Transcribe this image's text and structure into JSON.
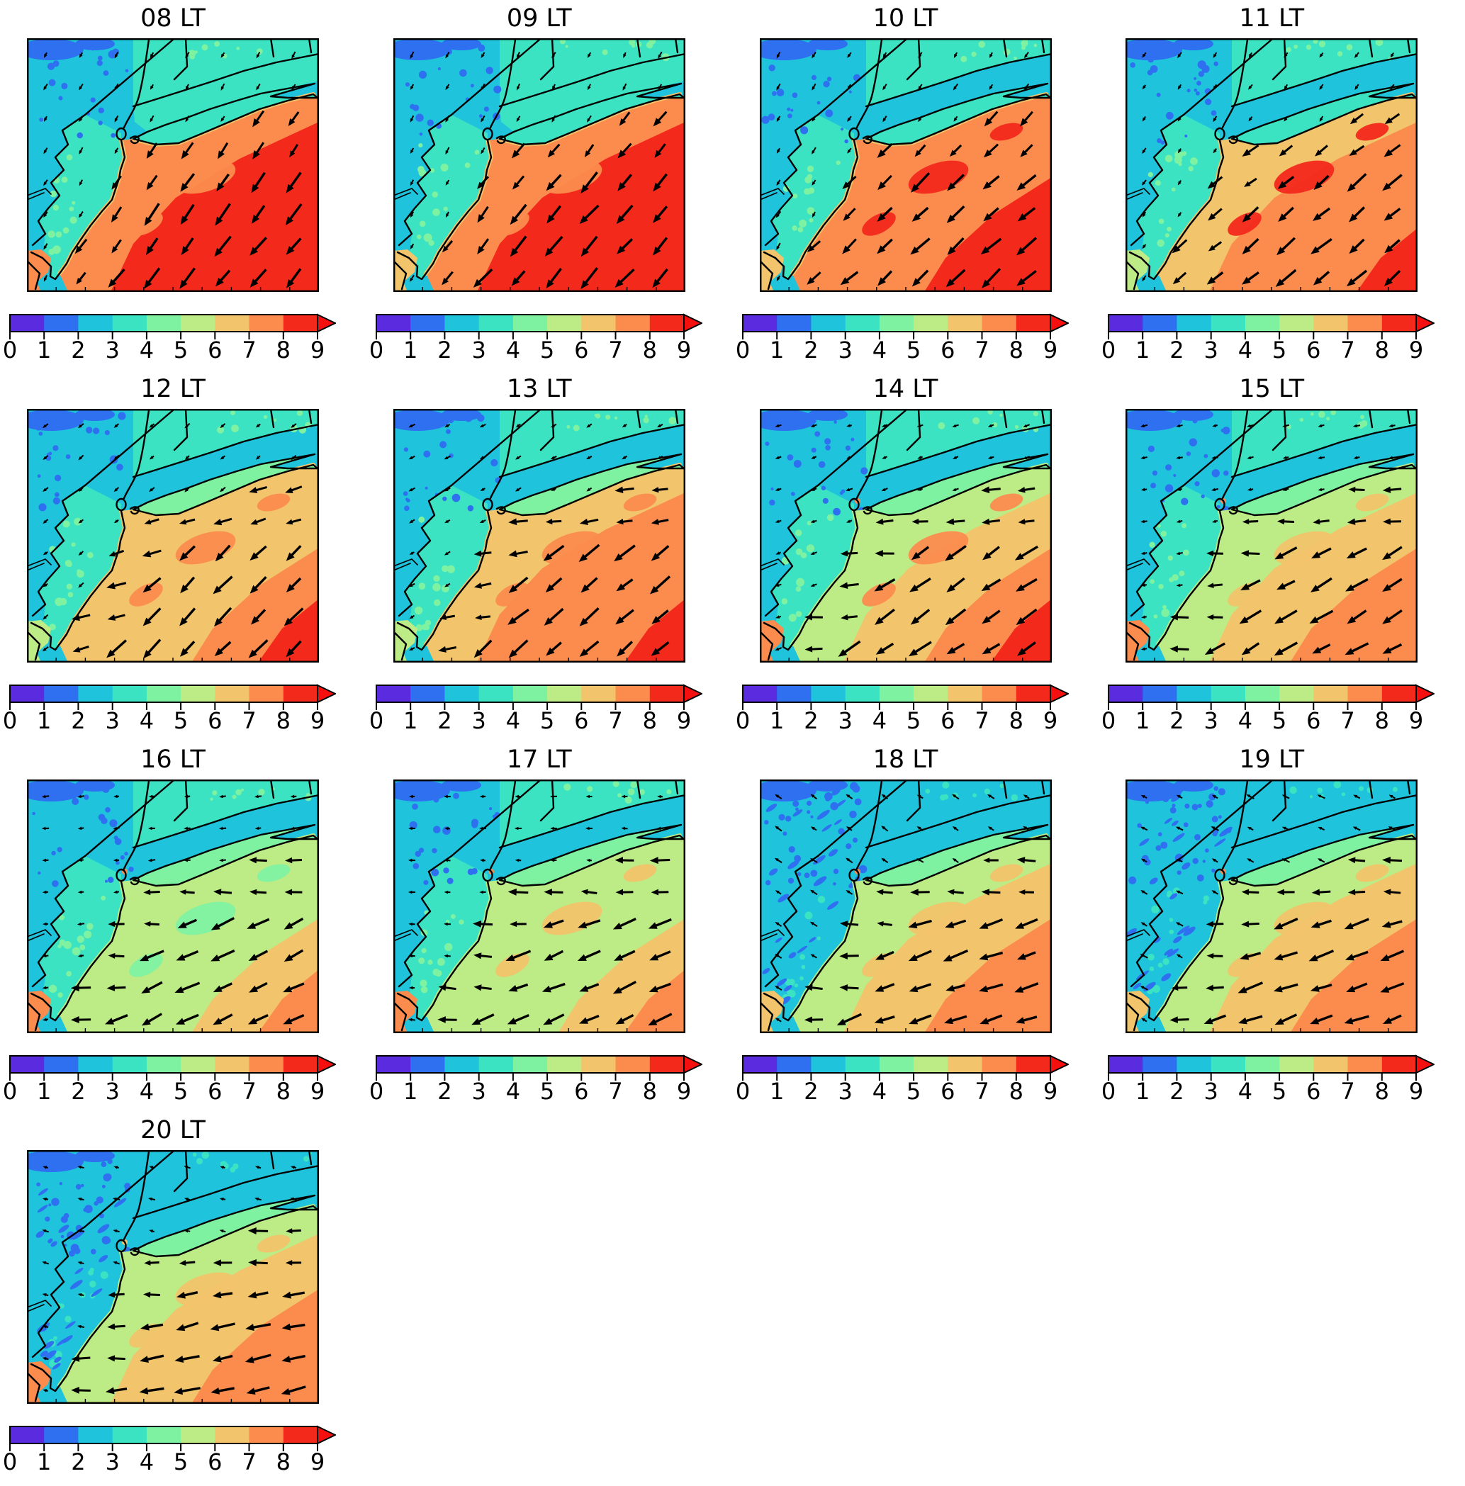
{
  "figure": {
    "rows": 4,
    "cols": 4,
    "panel_count": 13
  },
  "colorbar": {
    "ticks": [
      "0",
      "1",
      "2",
      "3",
      "4",
      "5",
      "6",
      "7",
      "8",
      "9"
    ],
    "range": [
      0,
      9
    ],
    "orientation": "horizontal",
    "extend": "max",
    "colors": [
      "#5b2be0",
      "#2e70f0",
      "#1fc3dc",
      "#3ce3c2",
      "#7ff2a2",
      "#bdeb85",
      "#f2c46b",
      "#fb8c4e",
      "#f3291c"
    ],
    "arrow_color": "#f60f0f"
  },
  "chart_data": {
    "type": "heatmap",
    "subplot_titles": [
      "08 LT",
      "09 LT",
      "10 LT",
      "11 LT",
      "12 LT",
      "13 LT",
      "14 LT",
      "15 LT",
      "16 LT",
      "17 LT",
      "18 LT",
      "19 LT",
      "20 LT"
    ],
    "colorbar": {
      "tick_labels": [
        "0",
        "1",
        "2",
        "3",
        "4",
        "5",
        "6",
        "7",
        "8",
        "9"
      ],
      "range": [
        0,
        9
      ],
      "bin_colors": [
        "#5b2be0",
        "#2e70f0",
        "#1fc3dc",
        "#3ce3c2",
        "#7ff2a2",
        "#bdeb85",
        "#f2c46b",
        "#fb8c4e",
        "#f3291c"
      ],
      "extend_color": "#f60f0f"
    },
    "panels": [
      {
        "time": "08 LT",
        "inland_value_bin": "2-4",
        "nearshore_value_bin": "7-8",
        "offshore_value_bin": "8-9",
        "wind_pointing": "SW"
      },
      {
        "time": "09 LT",
        "inland_value_bin": "2-4",
        "nearshore_value_bin": "7-8",
        "offshore_value_bin": "8-9",
        "wind_pointing": "SSW"
      },
      {
        "time": "10 LT",
        "inland_value_bin": "2-4",
        "nearshore_value_bin": "6-7",
        "offshore_value_bin": "7-9",
        "wind_pointing": "SSW"
      },
      {
        "time": "11 LT",
        "inland_value_bin": "2-4",
        "nearshore_value_bin": "6-7",
        "offshore_value_bin": "7-9",
        "wind_pointing": "SW"
      },
      {
        "time": "12 LT",
        "inland_value_bin": "2-4",
        "nearshore_value_bin": "6-7",
        "offshore_value_bin": "7-9",
        "wind_pointing": "W near coast, SW offshore"
      },
      {
        "time": "13 LT",
        "inland_value_bin": "2-4",
        "nearshore_value_bin": "6-7",
        "offshore_value_bin": "7-9",
        "wind_pointing": "W near coast, SW offshore"
      },
      {
        "time": "14 LT",
        "inland_value_bin": "2-4",
        "nearshore_value_bin": "5-6",
        "offshore_value_bin": "6-9",
        "wind_pointing": "W near coast, SW offshore"
      },
      {
        "time": "15 LT",
        "inland_value_bin": "2-4",
        "nearshore_value_bin": "5-6",
        "offshore_value_bin": "6-8",
        "wind_pointing": "W near coast, SW offshore"
      },
      {
        "time": "16 LT",
        "inland_value_bin": "2-4",
        "nearshore_value_bin": "5-6",
        "offshore_value_bin": "6-8",
        "wind_pointing": "W onshore"
      },
      {
        "time": "17 LT",
        "inland_value_bin": "2-4",
        "nearshore_value_bin": "5-6",
        "offshore_value_bin": "6-8",
        "wind_pointing": "W onshore"
      },
      {
        "time": "18 LT",
        "inland_value_bin": "1-4",
        "nearshore_value_bin": "5-6",
        "offshore_value_bin": "6-8",
        "wind_pointing": "W onshore, NW inland"
      },
      {
        "time": "19 LT",
        "inland_value_bin": "1-4",
        "nearshore_value_bin": "5-6",
        "offshore_value_bin": "6-8",
        "wind_pointing": "W onshore"
      },
      {
        "time": "20 LT",
        "inland_value_bin": "1-4",
        "nearshore_value_bin": "5-6",
        "offshore_value_bin": "6-8",
        "wind_pointing": "W"
      }
    ]
  },
  "panels": [
    {
      "title": "08 LT",
      "field": {
        "nw": "#1fc3dc",
        "nw_speckle": "#2e70f0",
        "snj": "#3ce3c2",
        "snj_speckle": "#7ff2a2",
        "ct": "#3ce3c2",
        "ct_speckle": "#7ff2a2",
        "li": "#3ce3c2",
        "sound": "#3ce3c2",
        "beach": "#f2c46b",
        "ocean_near": "#fb8c4e",
        "ocean_mid": "#f3291c",
        "ocean_far": "#f3291c",
        "ocean_deep": "#f3291c",
        "ocean_patch": "#fb8c4e",
        "bl": "#fb8c4e",
        "city": null,
        "heavy": false
      },
      "wind": {
        "land": {
          "angle": 240,
          "len": 10
        },
        "coast": {
          "angle": 235,
          "len": 25
        },
        "ocean": {
          "angle": 232,
          "len": 33
        }
      }
    },
    {
      "title": "09 LT",
      "field": {
        "nw": "#1fc3dc",
        "nw_speckle": "#2e70f0",
        "snj": "#3ce3c2",
        "snj_speckle": "#7ff2a2",
        "ct": "#3ce3c2",
        "ct_speckle": "#7ff2a2",
        "li": "#3ce3c2",
        "sound": "#3ce3c2",
        "beach": "#f2c46b",
        "ocean_near": "#fb8c4e",
        "ocean_mid": "#f3291c",
        "ocean_far": "#f3291c",
        "ocean_deep": "#f3291c",
        "ocean_patch": "#fb8c4e",
        "bl": "#f2c46b",
        "city": null,
        "heavy": false
      },
      "wind": {
        "land": {
          "angle": 242,
          "len": 10
        },
        "coast": {
          "angle": 232,
          "len": 25
        },
        "ocean": {
          "angle": 228,
          "len": 33
        }
      }
    },
    {
      "title": "10 LT",
      "field": {
        "nw": "#1fc3dc",
        "nw_speckle": "#2e70f0",
        "snj": "#3ce3c2",
        "snj_speckle": "#7ff2a2",
        "ct": "#3ce3c2",
        "ct_speckle": "#7ff2a2",
        "li": "#3ce3c2",
        "sound": "#1fc3dc",
        "beach": "#f2c46b",
        "ocean_near": "#fb8c4e",
        "ocean_mid": "#fb8c4e",
        "ocean_far": "#f3291c",
        "ocean_deep": "#f3291c",
        "ocean_patch": "#f3291c",
        "bl": "#f2c46b",
        "city": null,
        "heavy": false
      },
      "wind": {
        "land": {
          "angle": 238,
          "len": 10
        },
        "coast": {
          "angle": 225,
          "len": 25
        },
        "ocean": {
          "angle": 222,
          "len": 33
        }
      }
    },
    {
      "title": "11 LT",
      "field": {
        "nw": "#1fc3dc",
        "nw_speckle": "#2e70f0",
        "snj": "#3ce3c2",
        "snj_speckle": "#7ff2a2",
        "ct": "#3ce3c2",
        "ct_speckle": "#7ff2a2",
        "li": "#3ce3c2",
        "sound": "#1fc3dc",
        "beach": "#f2c46b",
        "ocean_near": "#f2c46b",
        "ocean_mid": "#fb8c4e",
        "ocean_far": "#fb8c4e",
        "ocean_deep": "#f3291c",
        "ocean_patch": "#f3291c",
        "bl": "#bdeb85",
        "city": null,
        "heavy": false
      },
      "wind": {
        "land": {
          "angle": 235,
          "len": 9
        },
        "coast": {
          "angle": 218,
          "len": 25
        },
        "ocean": {
          "angle": 220,
          "len": 33
        }
      }
    },
    {
      "title": "12 LT",
      "field": {
        "nw": "#1fc3dc",
        "nw_speckle": "#2e70f0",
        "snj": "#3ce3c2",
        "snj_speckle": "#7ff2a2",
        "ct": "#3ce3c2",
        "ct_speckle": "#7ff2a2",
        "li": "#7ff2a2",
        "sound": "#1fc3dc",
        "beach": "#f2c46b",
        "ocean_near": "#f2c46b",
        "ocean_mid": "#f2c46b",
        "ocean_far": "#fb8c4e",
        "ocean_deep": "#f3291c",
        "ocean_patch": "#fb8c4e",
        "bl": "#bdeb85",
        "city": null,
        "heavy": false
      },
      "wind": {
        "land": {
          "angle": 220,
          "len": 9
        },
        "coast": {
          "angle": 196,
          "len": 25
        },
        "ocean": {
          "angle": 224,
          "len": 33
        }
      }
    },
    {
      "title": "13 LT",
      "field": {
        "nw": "#1fc3dc",
        "nw_speckle": "#2e70f0",
        "snj": "#3ce3c2",
        "snj_speckle": "#7ff2a2",
        "ct": "#3ce3c2",
        "ct_speckle": "#7ff2a2",
        "li": "#7ff2a2",
        "sound": "#1fc3dc",
        "beach": "#f2c46b",
        "ocean_near": "#f2c46b",
        "ocean_mid": "#fb8c4e",
        "ocean_far": "#fb8c4e",
        "ocean_deep": "#f3291c",
        "ocean_patch": "#fb8c4e",
        "bl": "#bdeb85",
        "city": null,
        "heavy": false
      },
      "wind": {
        "land": {
          "angle": 210,
          "len": 9
        },
        "coast": {
          "angle": 188,
          "len": 25
        },
        "ocean": {
          "angle": 220,
          "len": 33
        }
      }
    },
    {
      "title": "14 LT",
      "field": {
        "nw": "#1fc3dc",
        "nw_speckle": "#2e70f0",
        "snj": "#3ce3c2",
        "snj_speckle": "#7ff2a2",
        "ct": "#3ce3c2",
        "ct_speckle": "#7ff2a2",
        "li": "#7ff2a2",
        "sound": "#1fc3dc",
        "beach": "#bdeb85",
        "ocean_near": "#bdeb85",
        "ocean_mid": "#f2c46b",
        "ocean_far": "#fb8c4e",
        "ocean_deep": "#f3291c",
        "ocean_patch": "#fb8c4e",
        "bl": "#fb8c4e",
        "city": "#fb8c4e",
        "heavy": false
      },
      "wind": {
        "land": {
          "angle": 200,
          "len": 9
        },
        "coast": {
          "angle": 184,
          "len": 25
        },
        "ocean": {
          "angle": 214,
          "len": 33
        }
      }
    },
    {
      "title": "15 LT",
      "field": {
        "nw": "#1fc3dc",
        "nw_speckle": "#2e70f0",
        "snj": "#3ce3c2",
        "snj_speckle": "#7ff2a2",
        "ct": "#3ce3c2",
        "ct_speckle": "#7ff2a2",
        "li": "#7ff2a2",
        "sound": "#1fc3dc",
        "beach": "#bdeb85",
        "ocean_near": "#bdeb85",
        "ocean_mid": "#f2c46b",
        "ocean_far": "#fb8c4e",
        "ocean_deep": "#fb8c4e",
        "ocean_patch": "#f2c46b",
        "bl": "#fb8c4e",
        "city": "#fb8c4e",
        "heavy": false
      },
      "wind": {
        "land": {
          "angle": 192,
          "len": 9
        },
        "coast": {
          "angle": 182,
          "len": 25
        },
        "ocean": {
          "angle": 210,
          "len": 33
        }
      }
    },
    {
      "title": "16 LT",
      "field": {
        "nw": "#1fc3dc",
        "nw_speckle": "#2e70f0",
        "snj": "#3ce3c2",
        "snj_speckle": "#7ff2a2",
        "ct": "#3ce3c2",
        "ct_speckle": "#7ff2a2",
        "li": "#7ff2a2",
        "sound": "#1fc3dc",
        "beach": "#bdeb85",
        "ocean_near": "#bdeb85",
        "ocean_mid": "#bdeb85",
        "ocean_far": "#f2c46b",
        "ocean_deep": "#fb8c4e",
        "ocean_patch": "#7ff2a2",
        "bl": "#fb8c4e",
        "city": "#fb8c4e",
        "heavy": false
      },
      "wind": {
        "land": {
          "angle": 186,
          "len": 9
        },
        "coast": {
          "angle": 179,
          "len": 25
        },
        "ocean": {
          "angle": 206,
          "len": 33
        }
      }
    },
    {
      "title": "17 LT",
      "field": {
        "nw": "#1fc3dc",
        "nw_speckle": "#2e70f0",
        "snj": "#3ce3c2",
        "snj_speckle": "#7ff2a2",
        "ct": "#3ce3c2",
        "ct_speckle": "#7ff2a2",
        "li": "#7ff2a2",
        "sound": "#1fc3dc",
        "beach": "#bdeb85",
        "ocean_near": "#bdeb85",
        "ocean_mid": "#bdeb85",
        "ocean_far": "#f2c46b",
        "ocean_deep": "#fb8c4e",
        "ocean_patch": "#f2c46b",
        "bl": "#fb8c4e",
        "city": "#fb8c4e",
        "heavy": false
      },
      "wind": {
        "land": {
          "angle": 178,
          "len": 9
        },
        "coast": {
          "angle": 177,
          "len": 25
        },
        "ocean": {
          "angle": 203,
          "len": 33
        }
      }
    },
    {
      "title": "18 LT",
      "field": {
        "nw": "#1fc3dc",
        "nw_speckle": "#2e70f0",
        "snj": "#1fc3dc",
        "snj_speckle": "#3ce3c2",
        "ct": "#1fc3dc",
        "ct_speckle": "#3ce3c2",
        "li": "#7ff2a2",
        "sound": "#1fc3dc",
        "beach": "#bdeb85",
        "ocean_near": "#bdeb85",
        "ocean_mid": "#f2c46b",
        "ocean_far": "#fb8c4e",
        "ocean_deep": "#fb8c4e",
        "ocean_patch": "#f2c46b",
        "bl": "#f2c46b",
        "city": "#fb8c4e",
        "heavy": true
      },
      "wind": {
        "land": {
          "angle": 146,
          "len": 11
        },
        "coast": {
          "angle": 177,
          "len": 25
        },
        "ocean": {
          "angle": 200,
          "len": 33
        }
      }
    },
    {
      "title": "19 LT",
      "field": {
        "nw": "#1fc3dc",
        "nw_speckle": "#2e70f0",
        "snj": "#1fc3dc",
        "snj_speckle": "#3ce3c2",
        "ct": "#1fc3dc",
        "ct_speckle": "#3ce3c2",
        "li": "#7ff2a2",
        "sound": "#1fc3dc",
        "beach": "#bdeb85",
        "ocean_near": "#bdeb85",
        "ocean_mid": "#f2c46b",
        "ocean_far": "#fb8c4e",
        "ocean_deep": "#fb8c4e",
        "ocean_patch": "#f2c46b",
        "bl": "#f2c46b",
        "city": "#fb8c4e",
        "heavy": true
      },
      "wind": {
        "land": {
          "angle": 152,
          "len": 11
        },
        "coast": {
          "angle": 179,
          "len": 25
        },
        "ocean": {
          "angle": 200,
          "len": 33
        }
      }
    },
    {
      "title": "20 LT",
      "field": {
        "nw": "#1fc3dc",
        "nw_speckle": "#2e70f0",
        "snj": "#1fc3dc",
        "snj_speckle": "#3ce3c2",
        "ct": "#1fc3dc",
        "ct_speckle": "#3ce3c2",
        "li": "#7ff2a2",
        "sound": "#1fc3dc",
        "beach": "#bdeb85",
        "ocean_near": "#bdeb85",
        "ocean_mid": "#f2c46b",
        "ocean_far": "#fb8c4e",
        "ocean_deep": "#fb8c4e",
        "ocean_patch": "#f2c46b",
        "bl": "#fb8c4e",
        "city": "#f2c46b",
        "heavy": true
      },
      "wind": {
        "land": {
          "angle": 166,
          "len": 9
        },
        "coast": {
          "angle": 181,
          "len": 25
        },
        "ocean": {
          "angle": 193,
          "len": 33
        }
      }
    }
  ]
}
